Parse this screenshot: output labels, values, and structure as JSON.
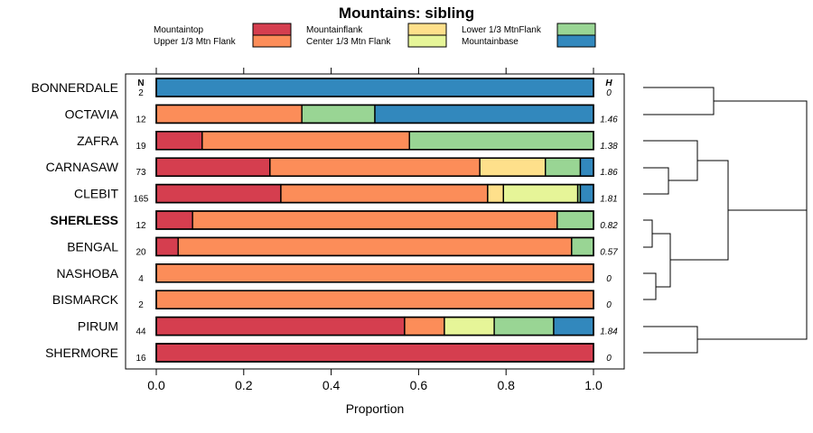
{
  "chart_data": {
    "type": "bar",
    "orientation": "horizontal-stacked",
    "title": "Mountains: sibling",
    "xlabel": "Proportion",
    "ylabel": "",
    "xlim": [
      0,
      1
    ],
    "x_ticks": [
      "0.0",
      "0.2",
      "0.4",
      "0.6",
      "0.8",
      "1.0"
    ],
    "x_tick_values": [
      0,
      0.2,
      0.4,
      0.6,
      0.8,
      1.0
    ],
    "n_header": "N",
    "h_header": "H",
    "legend": [
      {
        "name": "Mountaintop",
        "color": "#D53E4F"
      },
      {
        "name": "Upper 1/3 Mtn Flank",
        "color": "#FC8D59"
      },
      {
        "name": "Mountainflank",
        "color": "#FEE08B"
      },
      {
        "name": "Center 1/3 Mtn Flank",
        "color": "#E6F598"
      },
      {
        "name": "Lower 1/3 MtnFlank",
        "color": "#99D594"
      },
      {
        "name": "Mountainbase",
        "color": "#3288BD"
      }
    ],
    "series_order": [
      "Mountaintop",
      "Upper 1/3 Mtn Flank",
      "Mountainflank",
      "Center 1/3 Mtn Flank",
      "Lower 1/3 MtnFlank",
      "Mountainbase"
    ],
    "categories": [
      "BONNERDALE",
      "OCTAVIA",
      "ZAFRA",
      "CARNASAW",
      "CLEBIT",
      "SHERLESS",
      "BENGAL",
      "NASHOBA",
      "BISMARCK",
      "PIRUM",
      "SHERMORE"
    ],
    "highlight": "SHERLESS",
    "n": [
      "2",
      "12",
      "19",
      "73",
      "165",
      "12",
      "20",
      "4",
      "2",
      "44",
      "16"
    ],
    "h": [
      "0",
      "1.46",
      "1.38",
      "1.86",
      "1.81",
      "0.82",
      "0.57",
      "0",
      "0",
      "1.84",
      "0"
    ],
    "rows": [
      [
        0,
        0,
        0,
        0,
        0,
        1.0
      ],
      [
        0,
        0.333,
        0,
        0,
        0.167,
        0.5
      ],
      [
        0.105,
        0.474,
        0,
        0,
        0.421,
        0
      ],
      [
        0.26,
        0.48,
        0.15,
        0,
        0.08,
        0.03
      ],
      [
        0.285,
        0.473,
        0.036,
        0.17,
        0.006,
        0.03
      ],
      [
        0.083,
        0.834,
        0,
        0,
        0.083,
        0
      ],
      [
        0.05,
        0.9,
        0,
        0,
        0.05,
        0
      ],
      [
        0,
        1.0,
        0,
        0,
        0,
        0
      ],
      [
        0,
        1.0,
        0,
        0,
        0,
        0
      ],
      [
        0.568,
        0.091,
        0,
        0.114,
        0.136,
        0.091
      ],
      [
        1.0,
        0,
        0,
        0,
        0,
        0
      ]
    ]
  }
}
